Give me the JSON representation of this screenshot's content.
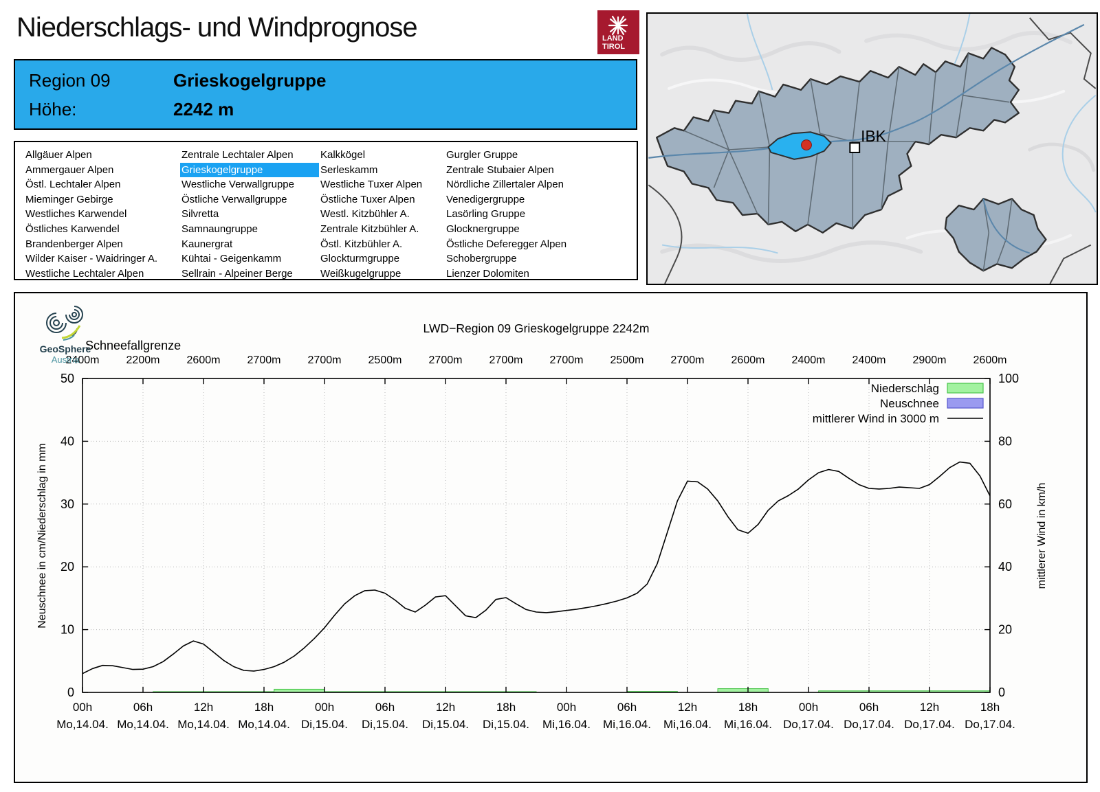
{
  "header": {
    "title": "Niederschlags- und Windprognose",
    "logo_line1": "LAND",
    "logo_line2": "TIROL"
  },
  "region_info": {
    "region_label": "Region 09",
    "region_name": "Grieskogelgruppe",
    "altitude_label": "Höhe:",
    "altitude_value": "2242 m"
  },
  "region_list": {
    "selected": "Grieskogelgruppe",
    "columns": [
      [
        "Allgäuer Alpen",
        "Ammergauer Alpen",
        "Östl. Lechtaler Alpen",
        "Mieminger Gebirge",
        "Westliches Karwendel",
        "Östliches Karwendel",
        "Brandenberger Alpen",
        "Wilder Kaiser - Waidringer A.",
        "Westliche Lechtaler Alpen"
      ],
      [
        "Zentrale Lechtaler Alpen",
        "Grieskogelgruppe",
        "Westliche Verwallgruppe",
        "Östliche Verwallgruppe",
        "Silvretta",
        "Samnaungruppe",
        "Kaunergrat",
        "Kühtai - Geigenkamm",
        "Sellrain - Alpeiner Berge"
      ],
      [
        "Kalkkögel",
        "Serleskamm",
        "Westliche Tuxer Alpen",
        "Östliche Tuxer Alpen",
        "Westl. Kitzbühler A.",
        "Zentrale Kitzbühler A.",
        "Östl. Kitzbühler A.",
        "Glockturmgruppe",
        "Weißkugelgruppe"
      ],
      [
        "Gurgler Gruppe",
        "Zentrale Stubaier Alpen",
        "Nördliche Zillertaler Alpen",
        "Venedigergruppe",
        "Lasörling Gruppe",
        "Glocknergruppe",
        "Östliche Deferegger Alpen",
        "Schobergruppe",
        "Lienzer Dolomiten"
      ]
    ]
  },
  "map": {
    "city_label": "IBK"
  },
  "geosphere": {
    "name": "GeoSphere",
    "country": "Austria"
  },
  "chart_data": {
    "type": "line+bar",
    "title": "LWD−Region 09 Grieskogelgruppe 2242m",
    "snowline": {
      "label": "Schneefallgrenze",
      "unit": "m",
      "values_m": [
        2400,
        2200,
        2600,
        2700,
        2700,
        2500,
        2700,
        2700,
        2700,
        2500,
        2700,
        2600,
        2400,
        2400,
        2900,
        2600
      ]
    },
    "x": {
      "range_hours": [
        0,
        90
      ],
      "tick_step_hours": 6,
      "tick_hours": [
        "00h",
        "06h",
        "12h",
        "18h",
        "00h",
        "06h",
        "12h",
        "18h",
        "00h",
        "06h",
        "12h",
        "18h",
        "00h",
        "06h",
        "12h",
        "18h"
      ],
      "tick_dates": [
        "Mo,14.04.",
        "Mo,14.04.",
        "Mo,14.04.",
        "Mo,14.04.",
        "Di,15.04.",
        "Di,15.04.",
        "Di,15.04.",
        "Di,15.04.",
        "Mi,16.04.",
        "Mi,16.04.",
        "Mi,16.04.",
        "Mi,16.04.",
        "Do,17.04.",
        "Do,17.04.",
        "Do,17.04.",
        "Do,17.04."
      ]
    },
    "y_left": {
      "label": "Neuschnee in cm/Niederschlag in mm",
      "ticks": [
        0,
        10,
        20,
        30,
        40,
        50
      ],
      "range": [
        0,
        50
      ],
      "grid": "dotted"
    },
    "y_right": {
      "label": "mittlerer Wind in km/h",
      "ticks": [
        0,
        20,
        40,
        60,
        80,
        100
      ],
      "range": [
        0,
        100
      ]
    },
    "legend": [
      {
        "label": "Niederschlag",
        "swatch": "box",
        "series": "niederschlag"
      },
      {
        "label": "Neuschnee",
        "swatch": "box",
        "series": "neuschnee"
      },
      {
        "label": "mittlerer Wind in 3000 m",
        "swatch": "line",
        "series": "wind"
      }
    ],
    "series": {
      "wind_kmh": [
        [
          0,
          6
        ],
        [
          1,
          7.6
        ],
        [
          2,
          8.6
        ],
        [
          3,
          8.5
        ],
        [
          4,
          7.9
        ],
        [
          5,
          7.3
        ],
        [
          6,
          7.4
        ],
        [
          7,
          8.2
        ],
        [
          8,
          9.8
        ],
        [
          9,
          12.2
        ],
        [
          10,
          14.8
        ],
        [
          11,
          16.4
        ],
        [
          12,
          15.4
        ],
        [
          13,
          12.8
        ],
        [
          14,
          10.2
        ],
        [
          15,
          8.2
        ],
        [
          16,
          7.0
        ],
        [
          17,
          6.8
        ],
        [
          18,
          7.3
        ],
        [
          19,
          8.2
        ],
        [
          20,
          9.6
        ],
        [
          21,
          11.6
        ],
        [
          22,
          14.2
        ],
        [
          23,
          17.2
        ],
        [
          24,
          20.6
        ],
        [
          25,
          24.6
        ],
        [
          26,
          28.2
        ],
        [
          27,
          30.8
        ],
        [
          28,
          32.4
        ],
        [
          29,
          32.6
        ],
        [
          30,
          31.6
        ],
        [
          31,
          29.4
        ],
        [
          32,
          26.8
        ],
        [
          33,
          25.6
        ],
        [
          34,
          27.8
        ],
        [
          35,
          30.4
        ],
        [
          36,
          30.8
        ],
        [
          37,
          27.6
        ],
        [
          38,
          24.4
        ],
        [
          39,
          23.8
        ],
        [
          40,
          26.2
        ],
        [
          41,
          29.6
        ],
        [
          42,
          30.2
        ],
        [
          43,
          28.2
        ],
        [
          44,
          26.4
        ],
        [
          45,
          25.6
        ],
        [
          46,
          25.4
        ],
        [
          47,
          25.7
        ],
        [
          48,
          26.1
        ],
        [
          49,
          26.5
        ],
        [
          50,
          27.0
        ],
        [
          51,
          27.6
        ],
        [
          52,
          28.3
        ],
        [
          53,
          29.1
        ],
        [
          54,
          30.1
        ],
        [
          55,
          31.6
        ],
        [
          56,
          34.5
        ],
        [
          57,
          41
        ],
        [
          58,
          51
        ],
        [
          59,
          61
        ],
        [
          60,
          67.3
        ],
        [
          61,
          67.1
        ],
        [
          62,
          64.8
        ],
        [
          63,
          61
        ],
        [
          64,
          56
        ],
        [
          65,
          51.8
        ],
        [
          66,
          50.7
        ],
        [
          67,
          53.5
        ],
        [
          68,
          58
        ],
        [
          69,
          61
        ],
        [
          70,
          62.7
        ],
        [
          71,
          64.8
        ],
        [
          72,
          67.7
        ],
        [
          73,
          70
        ],
        [
          74,
          71
        ],
        [
          75,
          70.4
        ],
        [
          76,
          68.2
        ],
        [
          77,
          66.2
        ],
        [
          78,
          65
        ],
        [
          79,
          64.8
        ],
        [
          80,
          65
        ],
        [
          81,
          65.4
        ],
        [
          82,
          65.2
        ],
        [
          83,
          65
        ],
        [
          84,
          66.2
        ],
        [
          85,
          68.8
        ],
        [
          86,
          71.6
        ],
        [
          87,
          73.4
        ],
        [
          88,
          73
        ],
        [
          89,
          69
        ],
        [
          90,
          62.6
        ]
      ],
      "niederschlag_mm": [
        {
          "from": 7,
          "to": 19,
          "mm": 0.12
        },
        {
          "from": 19,
          "to": 24,
          "mm": 0.5
        },
        {
          "from": 24,
          "to": 45,
          "mm": 0.12
        },
        {
          "from": 54,
          "to": 59,
          "mm": 0.15
        },
        {
          "from": 63,
          "to": 68,
          "mm": 0.6
        },
        {
          "from": 73,
          "to": 90,
          "mm": 0.25
        }
      ],
      "neuschnee_cm": []
    }
  },
  "colors": {
    "accent_blue": "#29a9ea",
    "highlight_blue": "#1aa2f2",
    "brand_red": "#a6192e",
    "precip_fill": "#a2f2a0",
    "precip_border": "#49c44a",
    "snow_fill": "#9a9af0",
    "snow_border": "#5555cc",
    "wind_line": "#000000",
    "map_region_fill": "#9fb0c0",
    "map_highlight": "#29b1ef",
    "map_marker_red": "#d43222",
    "geosphere_dark": "#25424f",
    "geosphere_teal": "#4a93a0",
    "geosphere_lime": "#c3d635"
  }
}
